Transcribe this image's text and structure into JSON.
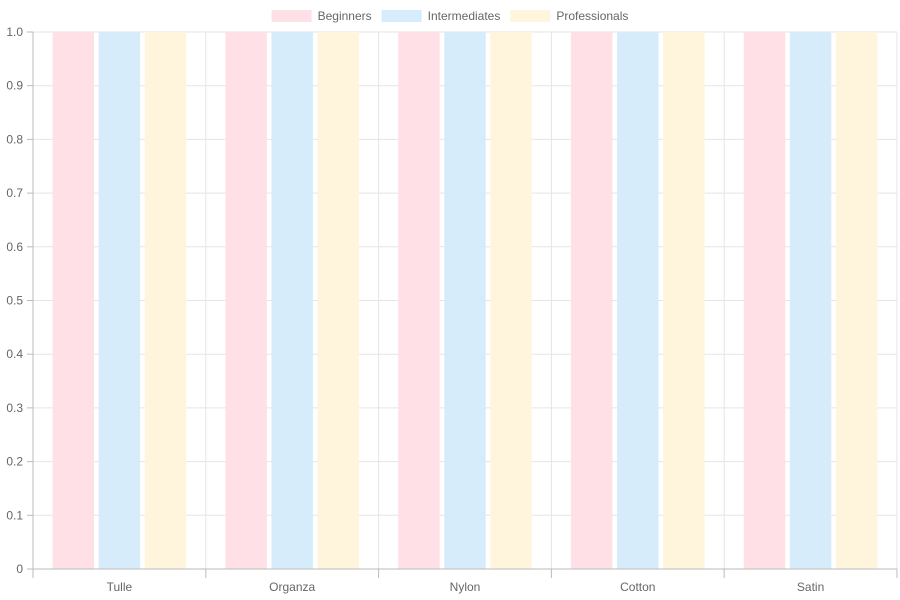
{
  "chart_data": {
    "type": "bar",
    "categories": [
      "Tulle",
      "Organza",
      "Nylon",
      "Cotton",
      "Satin"
    ],
    "series": [
      {
        "name": "Beginners",
        "values": [
          1,
          1,
          1,
          1,
          1
        ],
        "color": "#FFE0E6"
      },
      {
        "name": "Intermediates",
        "values": [
          1,
          1,
          1,
          1,
          1
        ],
        "color": "#D7ECFB"
      },
      {
        "name": "Professionals",
        "values": [
          1,
          1,
          1,
          1,
          1
        ],
        "color": "#FFF5DD"
      }
    ],
    "ylim": [
      0,
      1
    ],
    "yticks": [
      "0",
      "0.1",
      "0.2",
      "0.3",
      "0.4",
      "0.5",
      "0.6",
      "0.7",
      "0.8",
      "0.9",
      "1.0"
    ],
    "grid": true,
    "legend_position": "top-center",
    "grid_color": "#e5e5e5",
    "axis_color": "#bbbbbb"
  }
}
